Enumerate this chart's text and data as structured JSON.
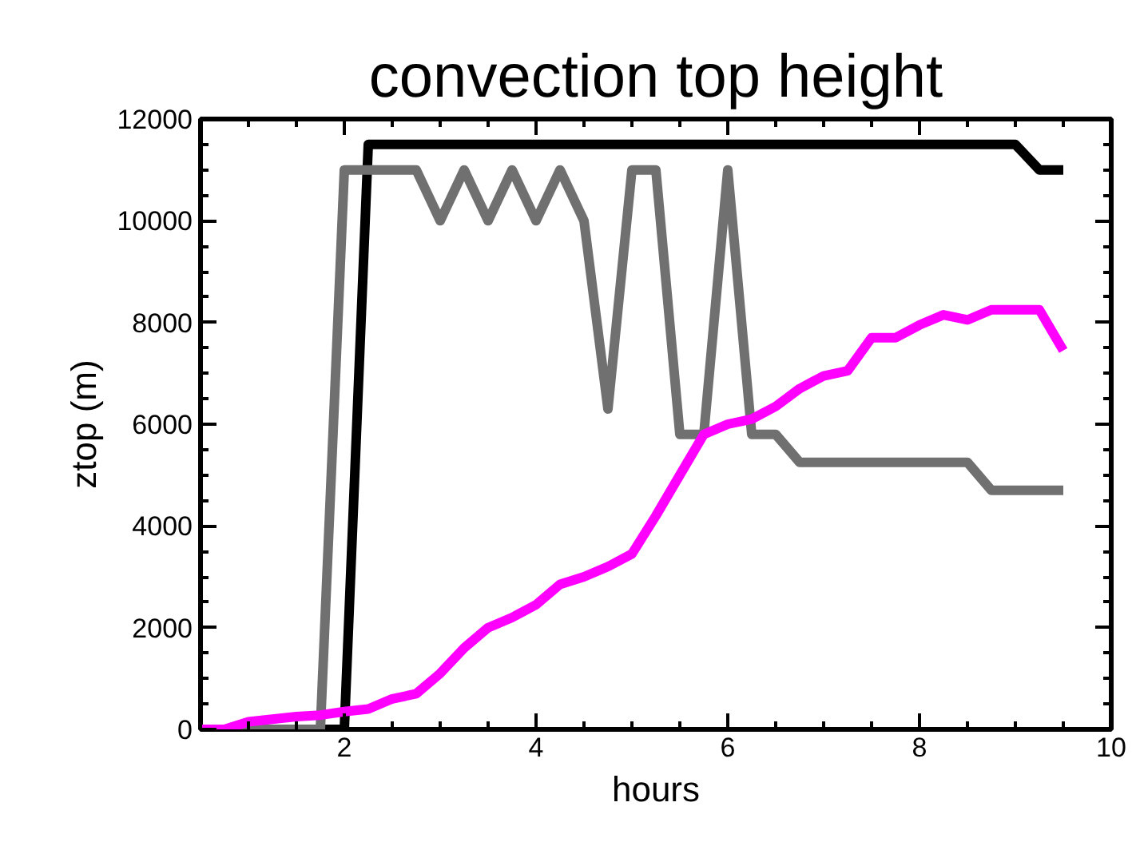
{
  "chart_data": {
    "type": "line",
    "title": "convection top height",
    "xlabel": "hours",
    "ylabel": "ztop (m)",
    "x": [
      0.5,
      0.75,
      1.0,
      1.25,
      1.5,
      1.75,
      2.0,
      2.25,
      2.5,
      2.75,
      3.0,
      3.25,
      3.5,
      3.75,
      4.0,
      4.25,
      4.5,
      4.75,
      5.0,
      5.25,
      5.5,
      5.75,
      6.0,
      6.25,
      6.5,
      6.75,
      7.0,
      7.25,
      7.5,
      7.75,
      8.0,
      8.25,
      8.5,
      8.75,
      9.0,
      9.25,
      9.5
    ],
    "series": [
      {
        "color": "#000000",
        "values": [
          0,
          0,
          0,
          0,
          0,
          0,
          0,
          11500,
          11500,
          11500,
          11500,
          11500,
          11500,
          11500,
          11500,
          11500,
          11500,
          11500,
          11500,
          11500,
          11500,
          11500,
          11500,
          11500,
          11500,
          11500,
          11500,
          11500,
          11500,
          11500,
          11500,
          11500,
          11500,
          11500,
          11500,
          11000,
          11000
        ]
      },
      {
        "color": "#707070",
        "values": [
          0,
          0,
          0,
          0,
          0,
          0,
          11000,
          11000,
          11000,
          11000,
          10000,
          11000,
          10000,
          11000,
          10000,
          11000,
          10000,
          6300,
          11000,
          11000,
          5800,
          5800,
          11000,
          5800,
          5800,
          5250,
          5250,
          5250,
          5250,
          5250,
          5250,
          5250,
          5250,
          4700,
          4700,
          4700,
          4700
        ]
      },
      {
        "color": "#ff00ff",
        "values": [
          0,
          0,
          150,
          200,
          250,
          280,
          350,
          400,
          600,
          700,
          1100,
          1600,
          2000,
          2200,
          2450,
          2850,
          3000,
          3200,
          3450,
          4200,
          5000,
          5800,
          6000,
          6100,
          6350,
          6700,
          6950,
          7050,
          7700,
          7700,
          7950,
          8150,
          8050,
          8250,
          8250,
          8250,
          7450
        ]
      }
    ],
    "xlim": [
      0.5,
      10
    ],
    "xticks": [
      2,
      4,
      6,
      8,
      10
    ],
    "ylim": [
      0,
      12000
    ],
    "yticks": [
      0,
      2000,
      4000,
      6000,
      8000,
      10000,
      12000
    ],
    "grid": false,
    "line_style": "solid",
    "marker": "none"
  }
}
